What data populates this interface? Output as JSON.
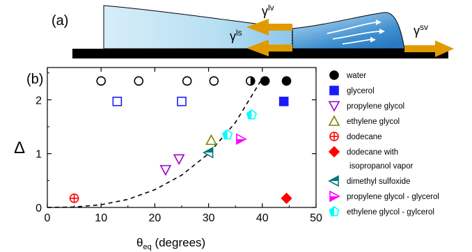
{
  "panel_a": {
    "label": "(a)",
    "forces": {
      "lv": "lv",
      "ls": "ls",
      "sv": "sv",
      "gamma": "γ"
    },
    "colors": {
      "liquid_light": "#c8e6f4",
      "liquid_dark": "#4f9cd6",
      "arrow": "#e09a00",
      "substrate": "#000000"
    }
  },
  "chart_data": {
    "type": "scatter",
    "panel_label": "(b)",
    "xlabel": {
      "symbol": "θ",
      "sub": "eq",
      "rest": " (degrees)"
    },
    "ylabel": "Δ",
    "xlim": [
      0,
      50
    ],
    "ylim": [
      0,
      2.6
    ],
    "xticks": [
      0,
      10,
      20,
      30,
      40,
      50
    ],
    "yticks": [
      0,
      1,
      2
    ],
    "legend_position": "right",
    "series": [
      {
        "name": "water",
        "color": "#000000",
        "marker": "circle",
        "points": [
          {
            "x": 10,
            "y": 2.35,
            "fill": "open"
          },
          {
            "x": 17,
            "y": 2.35,
            "fill": "open"
          },
          {
            "x": 26,
            "y": 2.35,
            "fill": "open"
          },
          {
            "x": 31,
            "y": 2.35,
            "fill": "open"
          },
          {
            "x": 37.8,
            "y": 2.35,
            "fill": "half"
          },
          {
            "x": 40.5,
            "y": 2.35,
            "fill": "filled"
          },
          {
            "x": 44.5,
            "y": 2.35,
            "fill": "filled"
          }
        ]
      },
      {
        "name": "glycerol",
        "color": "#1a1aff",
        "marker": "square",
        "points": [
          {
            "x": 13,
            "y": 1.97,
            "fill": "open"
          },
          {
            "x": 25,
            "y": 1.97,
            "fill": "open"
          },
          {
            "x": 44,
            "y": 1.97,
            "fill": "filled"
          }
        ]
      },
      {
        "name": "propylene glycol",
        "color": "#9900cc",
        "marker": "triangle-down",
        "points": [
          {
            "x": 22,
            "y": 0.7,
            "fill": "open"
          },
          {
            "x": 24.5,
            "y": 0.9,
            "fill": "open"
          }
        ]
      },
      {
        "name": "ethylene glycol",
        "color": "#808000",
        "marker": "triangle-up",
        "points": [
          {
            "x": 30.5,
            "y": 1.25,
            "fill": "open"
          }
        ]
      },
      {
        "name": "dodecane",
        "color": "#ff0000",
        "marker": "circle-cross",
        "points": [
          {
            "x": 5,
            "y": 0.17,
            "fill": "open"
          }
        ]
      },
      {
        "name": "dodecane with",
        "name_line2": "isopropanol vapor",
        "color": "#ff0000",
        "marker": "diamond",
        "points": [
          {
            "x": 44.5,
            "y": 0.17,
            "fill": "filled"
          }
        ]
      },
      {
        "name": "dimethyl sulfoxide",
        "color": "#007878",
        "marker": "triangle-left-half",
        "points": [
          {
            "x": 30,
            "y": 1.02,
            "fill": "half"
          }
        ]
      },
      {
        "name": "propylene glycol - glycerol",
        "color": "#ff00ff",
        "marker": "triangle-right-half",
        "points": [
          {
            "x": 36,
            "y": 1.27,
            "fill": "half"
          }
        ]
      },
      {
        "name": "ethylene glycol - gylcerol",
        "color": "#00ffff",
        "marker": "pentagon-half",
        "points": [
          {
            "x": 33.5,
            "y": 1.35,
            "fill": "half"
          },
          {
            "x": 38,
            "y": 1.72,
            "fill": "half"
          }
        ]
      }
    ],
    "fit_curve": {
      "style": "dashed",
      "x": [
        0,
        5,
        10,
        15,
        20,
        25,
        30,
        35,
        40
      ],
      "y": [
        0.0,
        0.008,
        0.05,
        0.15,
        0.33,
        0.6,
        1.0,
        1.58,
        2.4
      ]
    }
  }
}
